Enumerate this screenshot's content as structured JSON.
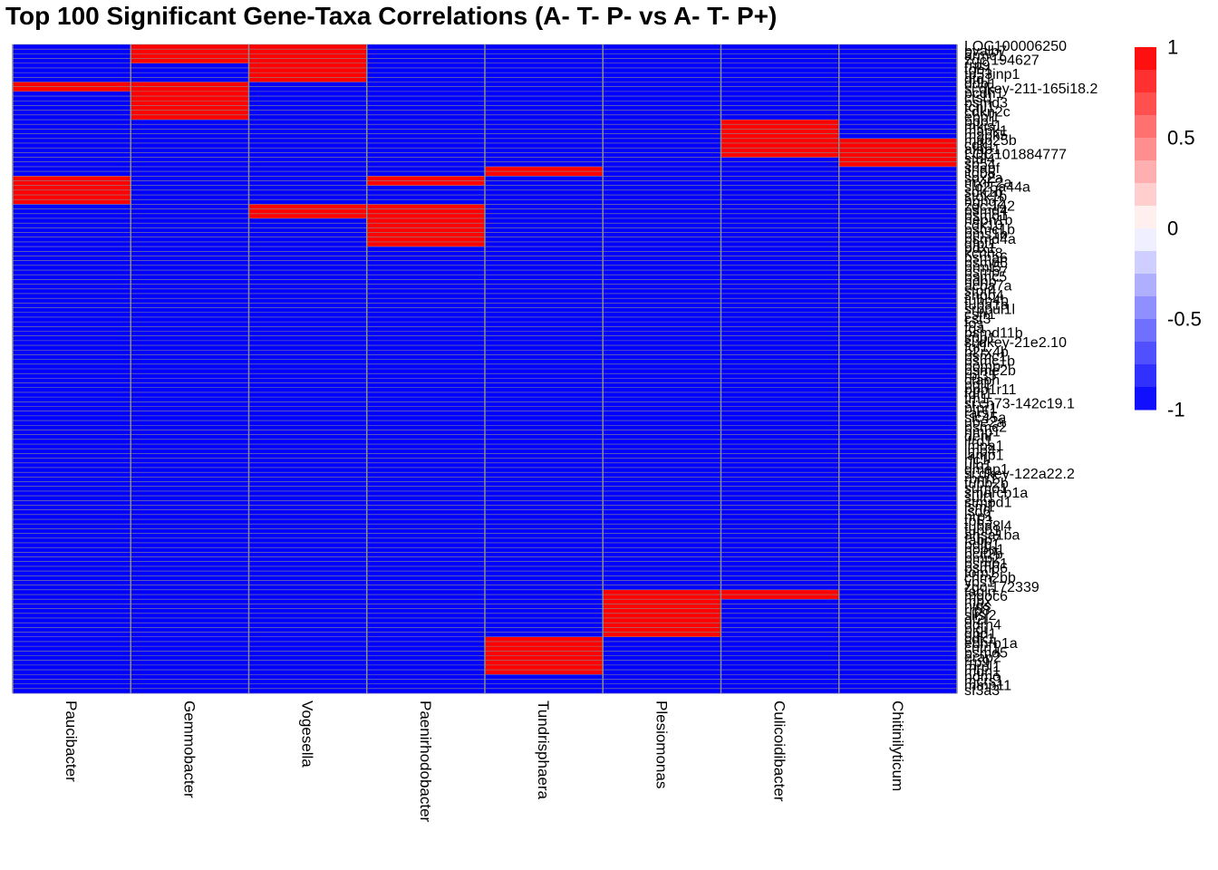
{
  "chart_data": {
    "type": "heatmap",
    "title": "Top 100 Significant Gene-Taxa Correlations (A- T- P- vs A- T- P+)",
    "columns": [
      "Paucibacter",
      "Gemmobacter",
      "Vogesella",
      "Paenirhodobacter",
      "Tundrisphaera",
      "Plesiomonas",
      "Culicoidibacter",
      "Chitinilyticum"
    ],
    "row_labels": [
      {
        "row": 0,
        "text": "LOC100006250"
      },
      {
        "row": 1,
        "text": "pvalb7"
      },
      {
        "row": 2,
        "text": "armc1"
      },
      {
        "row": 3,
        "text": "zgc:194627"
      },
      {
        "row": 4,
        "text": "rrp9"
      },
      {
        "row": 5,
        "text": "tob1"
      },
      {
        "row": 6,
        "text": "tp53inp1"
      },
      {
        "row": 7,
        "text": "dtd1"
      },
      {
        "row": 8,
        "text": "ddb1"
      },
      {
        "row": 9,
        "text": "si:dkey-211-165i18.2"
      },
      {
        "row": 10,
        "text": "pcdh1"
      },
      {
        "row": 11,
        "text": "ctsl1"
      },
      {
        "row": 12,
        "text": "psmd3"
      },
      {
        "row": 13,
        "text": "tcnl1"
      },
      {
        "row": 14,
        "text": "cdkn2c"
      },
      {
        "row": 15,
        "text": "ebpl1"
      },
      {
        "row": 16,
        "text": "ppp1"
      },
      {
        "row": 17,
        "text": "mkis1"
      },
      {
        "row": 18,
        "text": "mapk1"
      },
      {
        "row": 19,
        "text": "mapk5"
      },
      {
        "row": 20,
        "text": "map25b"
      },
      {
        "row": 21,
        "text": "cdk1"
      },
      {
        "row": 22,
        "text": "afap1"
      },
      {
        "row": 23,
        "text": "LOC101884777"
      },
      {
        "row": 24,
        "text": "stbi4"
      },
      {
        "row": 25,
        "text": "sp54"
      },
      {
        "row": 26,
        "text": "snapf"
      },
      {
        "row": 27,
        "text": "itgb5"
      },
      {
        "row": 28,
        "text": "sox2a"
      },
      {
        "row": 29,
        "text": "mxiF2a"
      },
      {
        "row": 30,
        "text": "slc25a44a"
      },
      {
        "row": 31,
        "text": "sdk1b"
      },
      {
        "row": 32,
        "text": "stok1b"
      },
      {
        "row": 33,
        "text": "hgng2"
      },
      {
        "row": 34,
        "text": "zgc:142"
      },
      {
        "row": 35,
        "text": "psmd4"
      },
      {
        "row": 36,
        "text": "psmd1"
      },
      {
        "row": 37,
        "text": "nepn1b"
      },
      {
        "row": 38,
        "text": "cdk10"
      },
      {
        "row": 39,
        "text": "psmc1b"
      },
      {
        "row": 40,
        "text": "pms1b"
      },
      {
        "row": 41,
        "text": "psmd4a"
      },
      {
        "row": 42,
        "text": "gfpt1"
      },
      {
        "row": 43,
        "text": "pdx1"
      },
      {
        "row": 44,
        "text": "kcnh8"
      },
      {
        "row": 45,
        "text": "psma6"
      },
      {
        "row": 46,
        "text": "psmd6"
      },
      {
        "row": 47,
        "text": "prmt5"
      },
      {
        "row": 48,
        "text": "psmb7"
      },
      {
        "row": 49,
        "text": "psmc5"
      },
      {
        "row": 50,
        "text": "ndhb"
      },
      {
        "row": 51,
        "text": "acba7a"
      },
      {
        "row": 52,
        "text": "stpr4"
      },
      {
        "row": 53,
        "text": "snpb4"
      },
      {
        "row": 54,
        "text": "tubb4b"
      },
      {
        "row": 55,
        "text": "tuba1a"
      },
      {
        "row": 56,
        "text": "srppul1l"
      },
      {
        "row": 57,
        "text": "csfr1"
      },
      {
        "row": 58,
        "text": "cst3"
      },
      {
        "row": 59,
        "text": "fos"
      },
      {
        "row": 60,
        "text": "fga"
      },
      {
        "row": 61,
        "text": "psmd11b"
      },
      {
        "row": 62,
        "text": "spp1"
      },
      {
        "row": 63,
        "text": "si:dkey-21e2.10"
      },
      {
        "row": 64,
        "text": "fgf1"
      },
      {
        "row": 65,
        "text": "p2rx4b"
      },
      {
        "row": 66,
        "text": "psmc1"
      },
      {
        "row": 67,
        "text": "psmc1b"
      },
      {
        "row": 68,
        "text": "pomp"
      },
      {
        "row": 69,
        "text": "psme2b"
      },
      {
        "row": 70,
        "text": "rpl35"
      },
      {
        "row": 71,
        "text": "ctaph"
      },
      {
        "row": 72,
        "text": "pdl1"
      },
      {
        "row": 73,
        "text": "ppp1r11"
      },
      {
        "row": 74,
        "text": "fdft1"
      },
      {
        "row": 75,
        "text": "tm1"
      },
      {
        "row": 76,
        "text": "si:ch73-142c19.1"
      },
      {
        "row": 77,
        "text": "ptpr1"
      },
      {
        "row": 78,
        "text": "rars1"
      },
      {
        "row": 79,
        "text": "slc45a"
      },
      {
        "row": 80,
        "text": "ube2a"
      },
      {
        "row": 81,
        "text": "psmc2"
      },
      {
        "row": 82,
        "text": "hmp1"
      },
      {
        "row": 83,
        "text": "denr"
      },
      {
        "row": 84,
        "text": "ifrd1"
      },
      {
        "row": 85,
        "text": "impa1"
      },
      {
        "row": 86,
        "text": "imp4"
      },
      {
        "row": 87,
        "text": "lamp1"
      },
      {
        "row": 88,
        "text": "rfc1"
      },
      {
        "row": 89,
        "text": "ulb1"
      },
      {
        "row": 90,
        "text": "dmap1"
      },
      {
        "row": 91,
        "text": "si:dkey-122a22.2"
      },
      {
        "row": 92,
        "text": "rbm1"
      },
      {
        "row": 93,
        "text": "tubb2b"
      },
      {
        "row": 94,
        "text": "sumo1"
      },
      {
        "row": 95,
        "text": "smarcb1a"
      },
      {
        "row": 96,
        "text": "sulf1"
      },
      {
        "row": 97,
        "text": "stmpd1"
      },
      {
        "row": 98,
        "text": "lsm1"
      },
      {
        "row": 99,
        "text": "lsd6"
      },
      {
        "row": 100,
        "text": "nrp1"
      },
      {
        "row": 101,
        "text": "tp53"
      },
      {
        "row": 102,
        "text": "tuba8l4"
      },
      {
        "row": 103,
        "text": "tubb1"
      },
      {
        "row": 104,
        "text": "ahsa1ba"
      },
      {
        "row": 105,
        "text": "fabp7"
      },
      {
        "row": 106,
        "text": "pdlb1"
      },
      {
        "row": 107,
        "text": "nopp1"
      },
      {
        "row": 108,
        "text": "pcif2b"
      },
      {
        "row": 109,
        "text": "bmp2"
      },
      {
        "row": 110,
        "text": "psmb1"
      },
      {
        "row": 111,
        "text": "psmb6"
      },
      {
        "row": 112,
        "text": "tom1"
      },
      {
        "row": 113,
        "text": "chm2bb"
      },
      {
        "row": 114,
        "text": "vps1"
      },
      {
        "row": 115,
        "text": "zgc:172339"
      },
      {
        "row": 116,
        "text": "tagln"
      },
      {
        "row": 117,
        "text": "mgoc6"
      },
      {
        "row": 118,
        "text": "mpx"
      },
      {
        "row": 119,
        "text": "nigs"
      },
      {
        "row": 120,
        "text": "rrp8"
      },
      {
        "row": 121,
        "text": "slisl2"
      },
      {
        "row": 122,
        "text": "dl2l"
      },
      {
        "row": 123,
        "text": "ddrh4"
      },
      {
        "row": 124,
        "text": "pigi"
      },
      {
        "row": 125,
        "text": "gpd1"
      },
      {
        "row": 126,
        "text": "cdk1"
      },
      {
        "row": 127,
        "text": "ednrb1a"
      },
      {
        "row": 128,
        "text": "cntn1"
      },
      {
        "row": 129,
        "text": "psmd5"
      },
      {
        "row": 130,
        "text": "erap2"
      },
      {
        "row": 131,
        "text": "rrp9"
      },
      {
        "row": 132,
        "text": "mrpl1"
      },
      {
        "row": 133,
        "text": "mdn1"
      },
      {
        "row": 134,
        "text": "hdmo"
      },
      {
        "row": 135,
        "text": "mcrs1"
      },
      {
        "row": 136,
        "text": "mmp11"
      },
      {
        "row": 137,
        "text": "sf3a3"
      }
    ],
    "row_count": 138,
    "values_note_free": true,
    "positive_cells": [
      {
        "col": 1,
        "rows": [
          0,
          4
        ]
      },
      {
        "col": 2,
        "rows": [
          0,
          8
        ]
      },
      {
        "col": 0,
        "rows": [
          8,
          10
        ]
      },
      {
        "col": 1,
        "rows": [
          8,
          16
        ]
      },
      {
        "col": 6,
        "rows": [
          16,
          24
        ]
      },
      {
        "col": 7,
        "rows": [
          20,
          26
        ]
      },
      {
        "col": 4,
        "rows": [
          26,
          28
        ]
      },
      {
        "col": 0,
        "rows": [
          28,
          34
        ]
      },
      {
        "col": 3,
        "rows": [
          28,
          30
        ]
      },
      {
        "col": 2,
        "rows": [
          34,
          37
        ]
      },
      {
        "col": 3,
        "rows": [
          34,
          43
        ]
      },
      {
        "col": 5,
        "rows": [
          116,
          126
        ]
      },
      {
        "col": 6,
        "rows": [
          116,
          118
        ]
      },
      {
        "col": 4,
        "rows": [
          126,
          134
        ]
      }
    ],
    "value_positive": 1,
    "value_negative": -1,
    "color_scale": {
      "min": -1,
      "max": 1,
      "low_color": "#0000ff",
      "mid_color": "#ffffff",
      "high_color": "#ff0000",
      "ticks": [
        "1",
        "0.5",
        "0",
        "-0.5",
        "-1"
      ]
    },
    "grid_color": "#8c8c8c",
    "legend_placement": "right"
  }
}
